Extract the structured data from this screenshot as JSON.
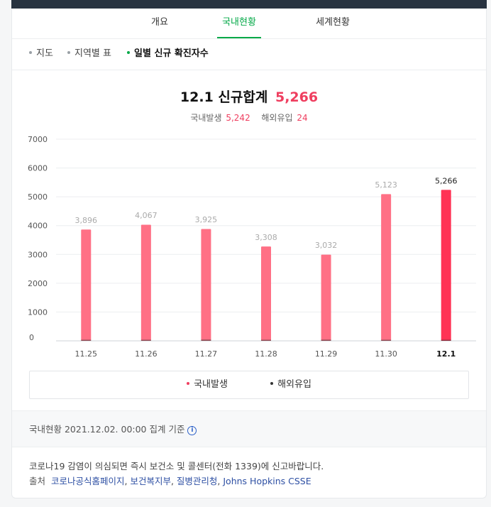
{
  "tabs": [
    {
      "label": "개요",
      "active": false
    },
    {
      "label": "국내현황",
      "active": true
    },
    {
      "label": "세계현황",
      "active": false
    }
  ],
  "subtabs": [
    {
      "label": "지도",
      "active": false
    },
    {
      "label": "지역별 표",
      "active": false
    },
    {
      "label": "일별 신규 확진자수",
      "active": true
    }
  ],
  "summary": {
    "title_prefix": "12.1 신규합계",
    "total": "5,266",
    "domestic_label": "국내발생",
    "domestic_value": "5,242",
    "overseas_label": "해외유입",
    "overseas_value": "24"
  },
  "colors": {
    "accent_green": "#04a948",
    "domestic_bar": "#ff7085",
    "domestic_bar_latest": "#ff3355",
    "overseas_bar": "#333333",
    "highlight_red": "#ef3e5f"
  },
  "chart_data": {
    "type": "bar",
    "stacked": true,
    "categories": [
      "11.25",
      "11.26",
      "11.27",
      "11.28",
      "11.29",
      "11.30",
      "12.1"
    ],
    "series": [
      {
        "name": "국내발생",
        "values": [
          3865,
          4030,
          3883,
          3275,
          2992,
          5093,
          5242
        ]
      },
      {
        "name": "해외유입",
        "values": [
          31,
          37,
          42,
          33,
          40,
          30,
          24
        ]
      }
    ],
    "totals": [
      "3,896",
      "4,067",
      "3,925",
      "3,308",
      "3,032",
      "5,123",
      "5,266"
    ],
    "totals_numeric": [
      3896,
      4067,
      3925,
      3308,
      3032,
      5123,
      5266
    ],
    "ylim": [
      0,
      7000
    ],
    "yticks": [
      0,
      1000,
      2000,
      3000,
      4000,
      5000,
      6000,
      7000
    ],
    "highlight_index": 6,
    "grid": true,
    "legend_position": "bottom"
  },
  "legend": [
    {
      "label": "국내발생",
      "color": "#ef3e5f"
    },
    {
      "label": "해외유입",
      "color": "#333333"
    }
  ],
  "footer": {
    "basis_text": "국내현황 2021.12.02. 00:00 집계 기준",
    "info_icon": "info-icon",
    "notice": "코로나19 감염이 의심되면 즉시 보건소 및 콜센터(전화 1339)에 신고바랍니다.",
    "source_label": "출처",
    "sources": [
      "코로나공식홈페이지",
      "보건복지부",
      "질병관리청",
      "Johns Hopkins CSSE"
    ]
  }
}
